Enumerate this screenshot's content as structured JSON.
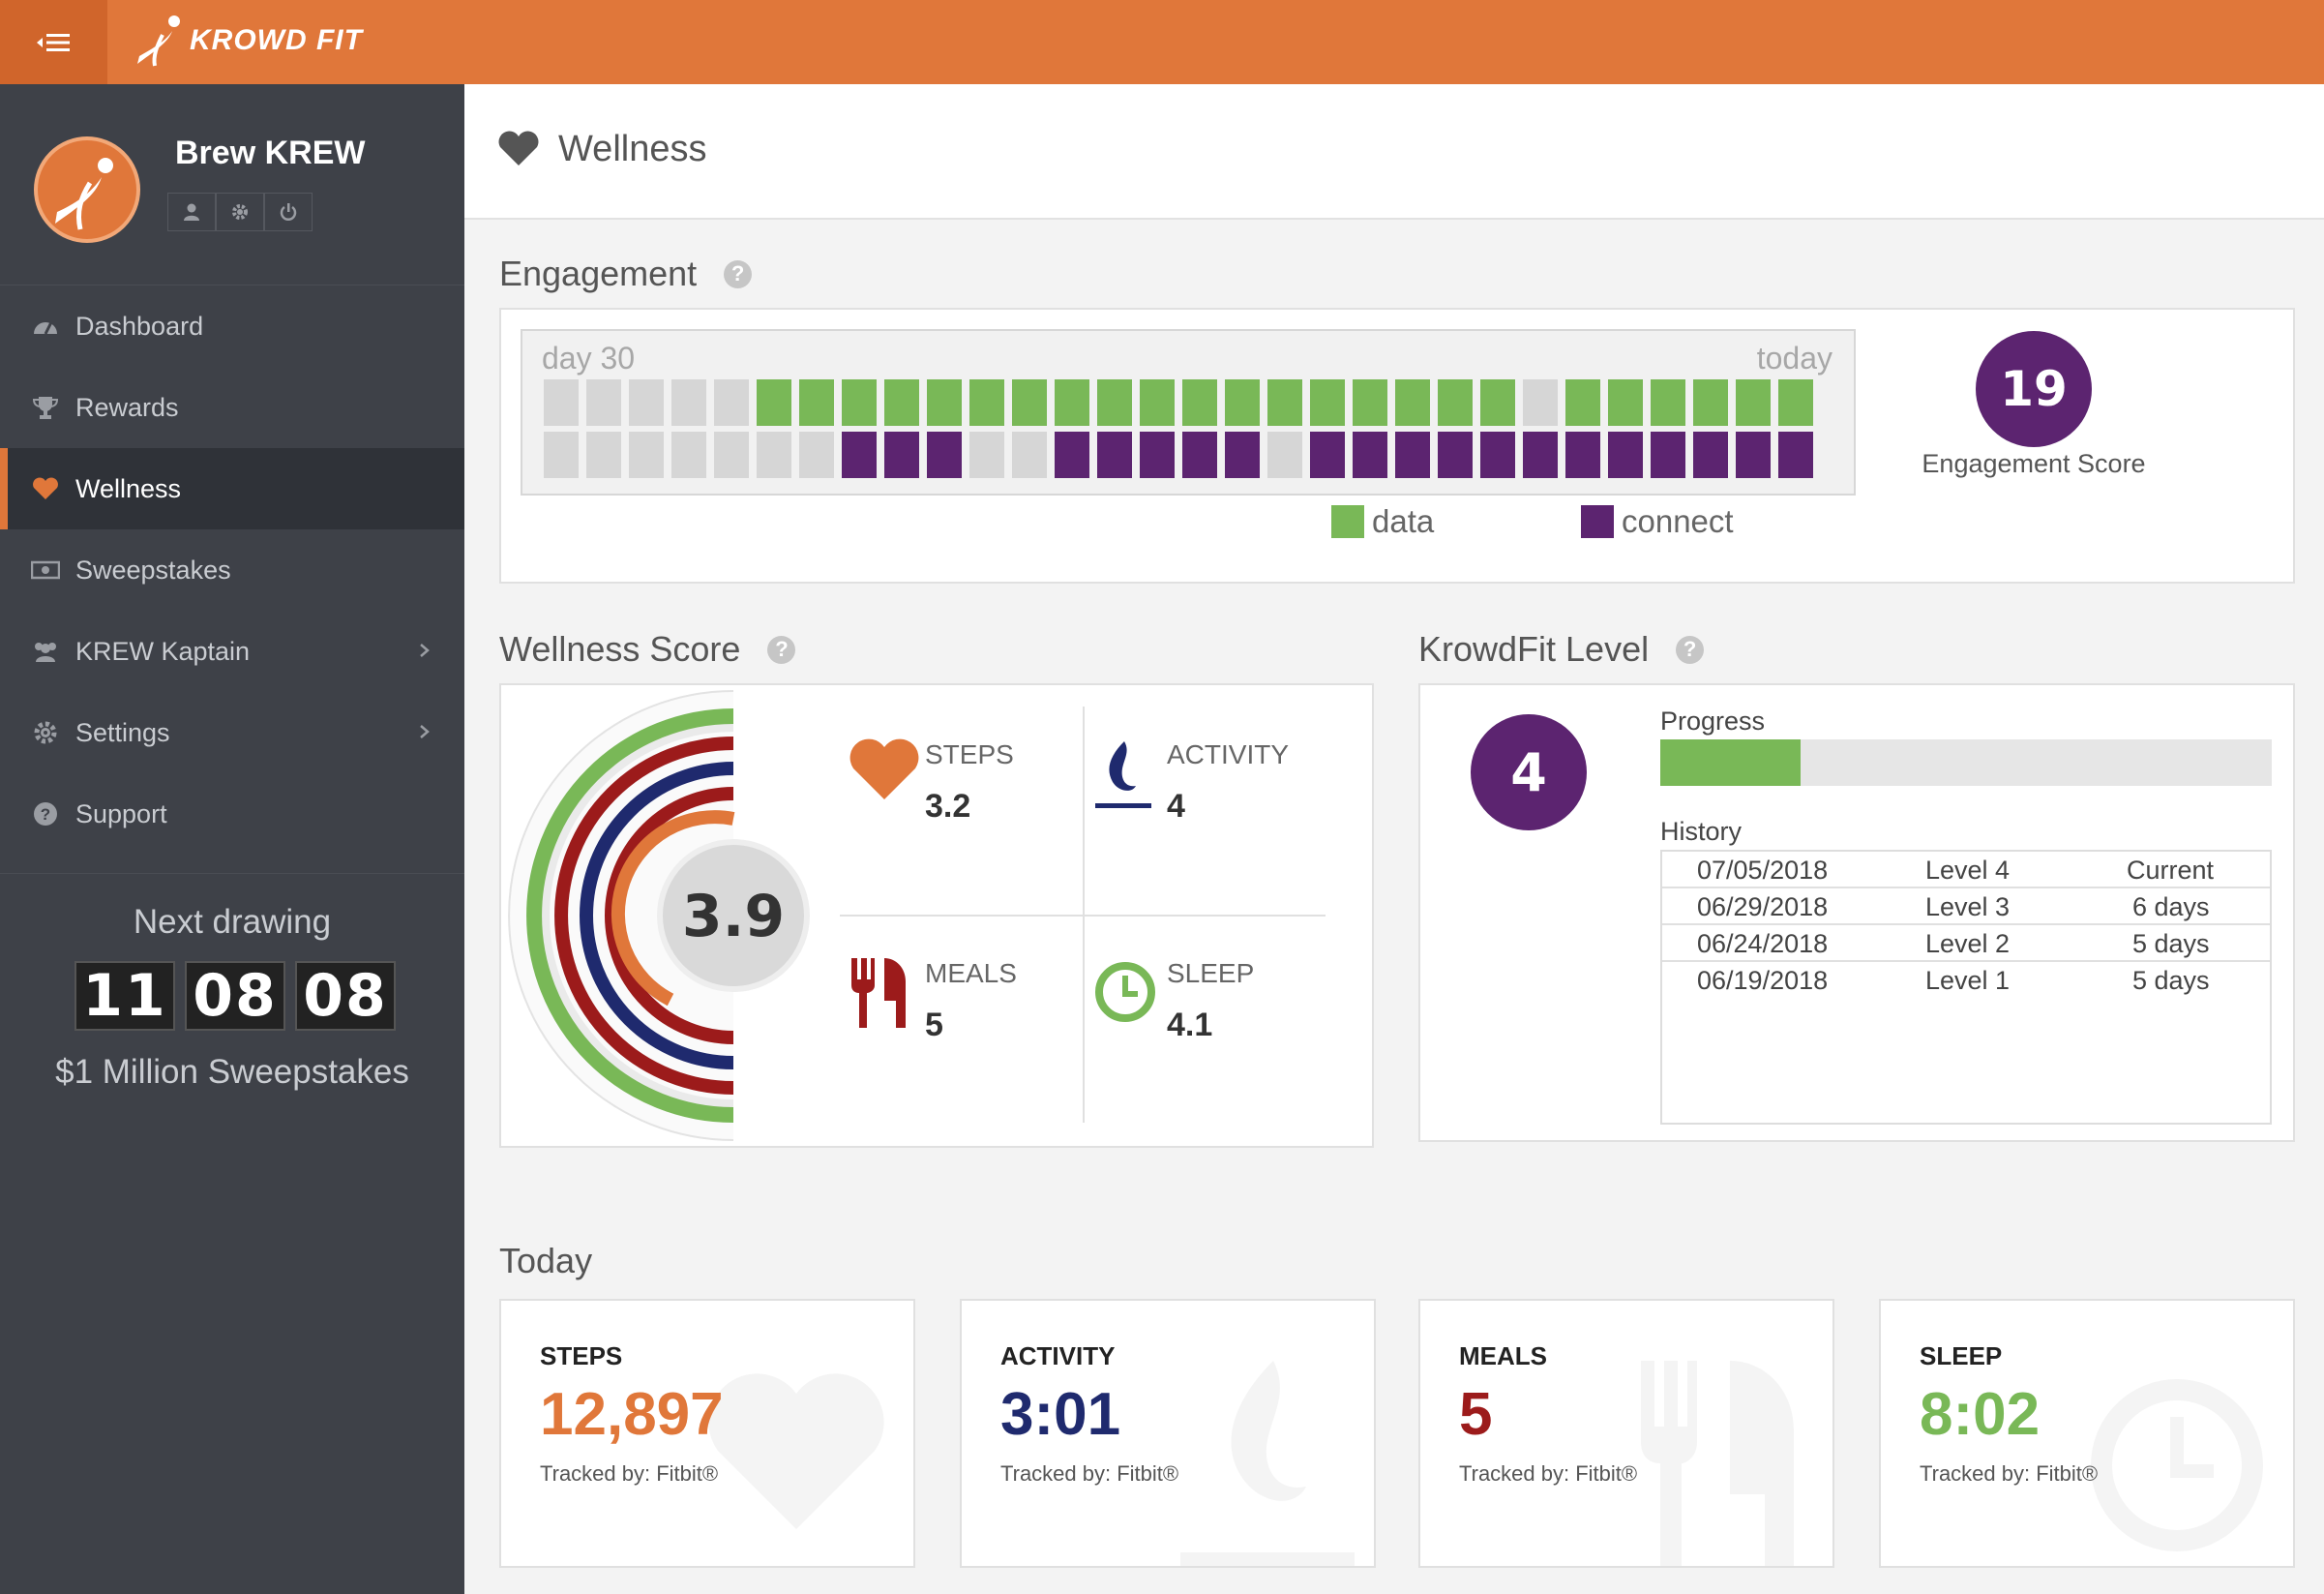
{
  "brand": {
    "name": "KROWD FIT"
  },
  "profile": {
    "org_name": "Brew KREW"
  },
  "nav": [
    {
      "label": "Dashboard",
      "icon": "dashboard-icon"
    },
    {
      "label": "Rewards",
      "icon": "trophy-icon"
    },
    {
      "label": "Wellness",
      "icon": "heart-icon",
      "active": true
    },
    {
      "label": "Sweepstakes",
      "icon": "money-icon"
    },
    {
      "label": "KREW Kaptain",
      "icon": "users-icon",
      "has_submenu": true
    },
    {
      "label": "Settings",
      "icon": "gear-icon",
      "has_submenu": true
    },
    {
      "label": "Support",
      "icon": "question-icon"
    }
  ],
  "drawing": {
    "title": "Next drawing",
    "hours": "11",
    "minutes": "08",
    "seconds": "08",
    "subtitle": "$1 Million Sweepstakes"
  },
  "page": {
    "title": "Wellness"
  },
  "engagement": {
    "title": "Engagement",
    "start_label": "day 30",
    "end_label": "today",
    "data_days": [
      0,
      0,
      0,
      0,
      0,
      1,
      1,
      1,
      1,
      1,
      1,
      1,
      1,
      1,
      1,
      1,
      1,
      1,
      1,
      1,
      1,
      1,
      1,
      0,
      1,
      1,
      1,
      1,
      1,
      1
    ],
    "connect_days": [
      0,
      0,
      0,
      0,
      0,
      0,
      0,
      1,
      1,
      1,
      0,
      0,
      1,
      1,
      1,
      1,
      1,
      0,
      1,
      1,
      1,
      1,
      1,
      1,
      1,
      1,
      1,
      1,
      1,
      1
    ],
    "legend_data": "data",
    "legend_connect": "connect",
    "score": "19",
    "score_label": "Engagement Score",
    "colors": {
      "data": "#79b857",
      "connect": "#5c2470",
      "empty": "#d6d6d6"
    }
  },
  "wellness_score": {
    "title": "Wellness Score",
    "score": "3.9",
    "items": [
      {
        "label": "STEPS",
        "value": "3.2",
        "icon": "heart-icon",
        "color": "#e0773a"
      },
      {
        "label": "ACTIVITY",
        "value": "4",
        "icon": "flame-icon",
        "color": "#1f2a6e"
      },
      {
        "label": "MEALS",
        "value": "5",
        "icon": "utensils-icon",
        "color": "#9c1b1b"
      },
      {
        "label": "SLEEP",
        "value": "4.1",
        "icon": "clock-icon",
        "color": "#79b857"
      }
    ]
  },
  "krowdfit_level": {
    "title": "KrowdFit Level",
    "level": "4",
    "progress_label": "Progress",
    "progress_fraction": 0.23,
    "history_label": "History",
    "history": [
      {
        "date": "07/05/2018",
        "level": "Level 4",
        "duration": "Current"
      },
      {
        "date": "06/29/2018",
        "level": "Level 3",
        "duration": "6 days"
      },
      {
        "date": "06/24/2018",
        "level": "Level 2",
        "duration": "5 days"
      },
      {
        "date": "06/19/2018",
        "level": "Level 1",
        "duration": "5 days"
      }
    ]
  },
  "today": {
    "title": "Today",
    "cards": [
      {
        "title": "STEPS",
        "value": "12,897",
        "tracked": "Tracked by: Fitbit®",
        "color": "#e0773a",
        "icon": "heart-icon"
      },
      {
        "title": "ACTIVITY",
        "value": "3:01",
        "tracked": "Tracked by: Fitbit®",
        "color": "#1f2a6e",
        "icon": "flame-icon"
      },
      {
        "title": "MEALS",
        "value": "5",
        "tracked": "Tracked by: Fitbit®",
        "color": "#9c1b1b",
        "icon": "utensils-icon"
      },
      {
        "title": "SLEEP",
        "value": "8:02",
        "tracked": "Tracked by: Fitbit®",
        "color": "#79b857",
        "icon": "clock-icon"
      }
    ]
  }
}
